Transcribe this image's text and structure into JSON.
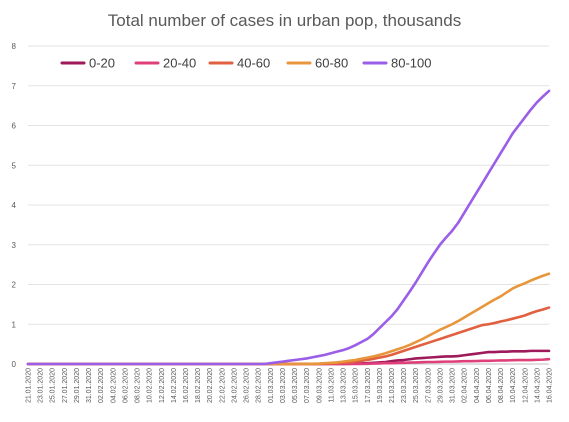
{
  "chart_data": {
    "type": "line",
    "title": "Total number of cases in urban pop, thousands",
    "xlabel": "",
    "ylabel": "",
    "ylim": [
      0,
      8
    ],
    "yticks": [
      "0",
      "1",
      "2",
      "3",
      "4",
      "5",
      "6",
      "7",
      "8"
    ],
    "x": [
      "21.01.2020",
      "22.01.2020",
      "23.01.2020",
      "24.01.2020",
      "25.01.2020",
      "26.01.2020",
      "27.01.2020",
      "28.01.2020",
      "29.01.2020",
      "30.01.2020",
      "31.01.2020",
      "01.02.2020",
      "02.02.2020",
      "03.02.2020",
      "04.02.2020",
      "05.02.2020",
      "06.02.2020",
      "07.02.2020",
      "08.02.2020",
      "09.02.2020",
      "10.02.2020",
      "11.02.2020",
      "12.02.2020",
      "13.02.2020",
      "14.02.2020",
      "15.02.2020",
      "16.02.2020",
      "17.02.2020",
      "18.02.2020",
      "19.02.2020",
      "20.02.2020",
      "21.02.2020",
      "22.02.2020",
      "23.02.2020",
      "24.02.2020",
      "25.02.2020",
      "26.02.2020",
      "27.02.2020",
      "28.02.2020",
      "29.02.2020",
      "01.03.2020",
      "02.03.2020",
      "03.03.2020",
      "04.03.2020",
      "05.03.2020",
      "06.03.2020",
      "07.03.2020",
      "08.03.2020",
      "09.03.2020",
      "10.03.2020",
      "11.03.2020",
      "12.03.2020",
      "13.03.2020",
      "14.03.2020",
      "15.03.2020",
      "16.03.2020",
      "17.03.2020",
      "18.03.2020",
      "19.03.2020",
      "20.03.2020",
      "21.03.2020",
      "22.03.2020",
      "23.03.2020",
      "24.03.2020",
      "25.03.2020",
      "26.03.2020",
      "27.03.2020",
      "28.03.2020",
      "29.03.2020",
      "30.03.2020",
      "31.03.2020",
      "01.04.2020",
      "02.04.2020",
      "03.04.2020",
      "04.04.2020",
      "05.04.2020",
      "06.04.2020",
      "07.04.2020",
      "08.04.2020",
      "09.04.2020",
      "10.04.2020",
      "11.04.2020",
      "12.04.2020",
      "13.04.2020",
      "14.04.2020",
      "15.04.2020",
      "16.04.2020"
    ],
    "xtick_labels": [
      "21.01.2020",
      "23.01.2020",
      "25.01.2020",
      "27.01.2020",
      "29.01.2020",
      "31.01.2020",
      "02.02.2020",
      "04.02.2020",
      "06.02.2020",
      "08.02.2020",
      "10.02.2020",
      "12.02.2020",
      "14.02.2020",
      "16.02.2020",
      "18.02.2020",
      "20.02.2020",
      "22.02.2020",
      "24.02.2020",
      "26.02.2020",
      "28.02.2020",
      "01.03.2020",
      "03.03.2020",
      "05.03.2020",
      "07.03.2020",
      "09.03.2020",
      "11.03.2020",
      "13.03.2020",
      "15.03.2020",
      "17.03.2020",
      "19.03.2020",
      "21.03.2020",
      "23.03.2020",
      "25.03.2020",
      "27.03.2020",
      "29.03.2020",
      "31.03.2020",
      "02.04.2020",
      "04.04.2020",
      "06.04.2020",
      "08.04.2020",
      "10.04.2020",
      "12.04.2020",
      "14.04.2020",
      "16.04.2020"
    ],
    "grid": true,
    "legend_position": "top",
    "series": [
      {
        "name": "0-20",
        "color": "#9e1a5a",
        "values": [
          0,
          0,
          0,
          0,
          0,
          0,
          0,
          0,
          0,
          0,
          0,
          0,
          0,
          0,
          0,
          0,
          0,
          0,
          0,
          0,
          0,
          0,
          0,
          0,
          0,
          0,
          0,
          0,
          0,
          0,
          0,
          0,
          0,
          0,
          0,
          0,
          0,
          0,
          0,
          0,
          0,
          0,
          0,
          0,
          0,
          0,
          0,
          0,
          0,
          0,
          0,
          0,
          0,
          0.005,
          0.01,
          0.015,
          0.02,
          0.03,
          0.04,
          0.05,
          0.07,
          0.09,
          0.1,
          0.12,
          0.14,
          0.15,
          0.16,
          0.17,
          0.18,
          0.19,
          0.19,
          0.2,
          0.22,
          0.24,
          0.26,
          0.28,
          0.3,
          0.3,
          0.31,
          0.31,
          0.32,
          0.32,
          0.32,
          0.33,
          0.33,
          0.33,
          0.33
        ]
      },
      {
        "name": "20-40",
        "color": "#e0407a",
        "values": [
          0,
          0,
          0,
          0,
          0,
          0,
          0,
          0,
          0,
          0,
          0,
          0,
          0,
          0,
          0,
          0,
          0,
          0,
          0,
          0,
          0,
          0,
          0,
          0,
          0,
          0,
          0,
          0,
          0,
          0,
          0,
          0,
          0,
          0,
          0,
          0,
          0,
          0,
          0,
          0,
          0,
          0,
          0,
          0,
          0,
          0,
          0,
          0,
          0,
          0,
          0,
          0,
          0,
          0,
          0,
          0,
          0.005,
          0.01,
          0.015,
          0.02,
          0.02,
          0.025,
          0.03,
          0.035,
          0.04,
          0.045,
          0.05,
          0.05,
          0.055,
          0.06,
          0.06,
          0.065,
          0.07,
          0.07,
          0.075,
          0.08,
          0.08,
          0.085,
          0.09,
          0.09,
          0.095,
          0.1,
          0.1,
          0.1,
          0.105,
          0.11,
          0.12
        ]
      },
      {
        "name": "40-60",
        "color": "#e06040",
        "values": [
          0,
          0,
          0,
          0,
          0,
          0,
          0,
          0,
          0,
          0,
          0,
          0,
          0,
          0,
          0,
          0,
          0,
          0,
          0,
          0,
          0,
          0,
          0,
          0,
          0,
          0,
          0,
          0,
          0,
          0,
          0,
          0,
          0,
          0,
          0,
          0,
          0,
          0,
          0,
          0,
          0,
          0,
          0,
          0,
          0,
          0,
          0,
          0,
          0.005,
          0.01,
          0.015,
          0.02,
          0.03,
          0.04,
          0.06,
          0.08,
          0.1,
          0.13,
          0.16,
          0.19,
          0.23,
          0.28,
          0.33,
          0.38,
          0.43,
          0.48,
          0.53,
          0.58,
          0.63,
          0.68,
          0.73,
          0.78,
          0.83,
          0.88,
          0.93,
          0.98,
          1.0,
          1.03,
          1.07,
          1.1,
          1.14,
          1.18,
          1.22,
          1.28,
          1.33,
          1.37,
          1.42
        ]
      },
      {
        "name": "60-80",
        "color": "#e8963c",
        "values": [
          0,
          0,
          0,
          0,
          0,
          0,
          0,
          0,
          0,
          0,
          0,
          0,
          0,
          0,
          0,
          0,
          0,
          0,
          0,
          0,
          0,
          0,
          0,
          0,
          0,
          0,
          0,
          0,
          0,
          0,
          0,
          0,
          0,
          0,
          0,
          0,
          0,
          0,
          0,
          0,
          0,
          0,
          0,
          0,
          0,
          0,
          0,
          0.005,
          0.01,
          0.02,
          0.03,
          0.04,
          0.06,
          0.08,
          0.1,
          0.13,
          0.16,
          0.19,
          0.23,
          0.27,
          0.32,
          0.37,
          0.42,
          0.48,
          0.55,
          0.62,
          0.7,
          0.78,
          0.86,
          0.93,
          1.0,
          1.08,
          1.17,
          1.26,
          1.35,
          1.44,
          1.53,
          1.62,
          1.7,
          1.8,
          1.9,
          1.97,
          2.03,
          2.1,
          2.16,
          2.22,
          2.27
        ]
      },
      {
        "name": "80-100",
        "color": "#9b5ee8",
        "values": [
          0,
          0,
          0,
          0,
          0,
          0,
          0,
          0,
          0,
          0,
          0,
          0,
          0,
          0,
          0,
          0,
          0,
          0,
          0,
          0,
          0,
          0,
          0,
          0,
          0,
          0,
          0,
          0,
          0,
          0,
          0,
          0,
          0,
          0,
          0,
          0,
          0,
          0,
          0,
          0,
          0.02,
          0.04,
          0.06,
          0.08,
          0.1,
          0.12,
          0.14,
          0.17,
          0.2,
          0.23,
          0.27,
          0.31,
          0.35,
          0.4,
          0.47,
          0.55,
          0.63,
          0.75,
          0.9,
          1.05,
          1.2,
          1.38,
          1.6,
          1.82,
          2.05,
          2.3,
          2.55,
          2.78,
          3.0,
          3.18,
          3.35,
          3.55,
          3.8,
          4.05,
          4.3,
          4.55,
          4.8,
          5.05,
          5.3,
          5.55,
          5.8,
          6.0,
          6.2,
          6.4,
          6.58,
          6.73,
          6.87
        ]
      }
    ]
  }
}
